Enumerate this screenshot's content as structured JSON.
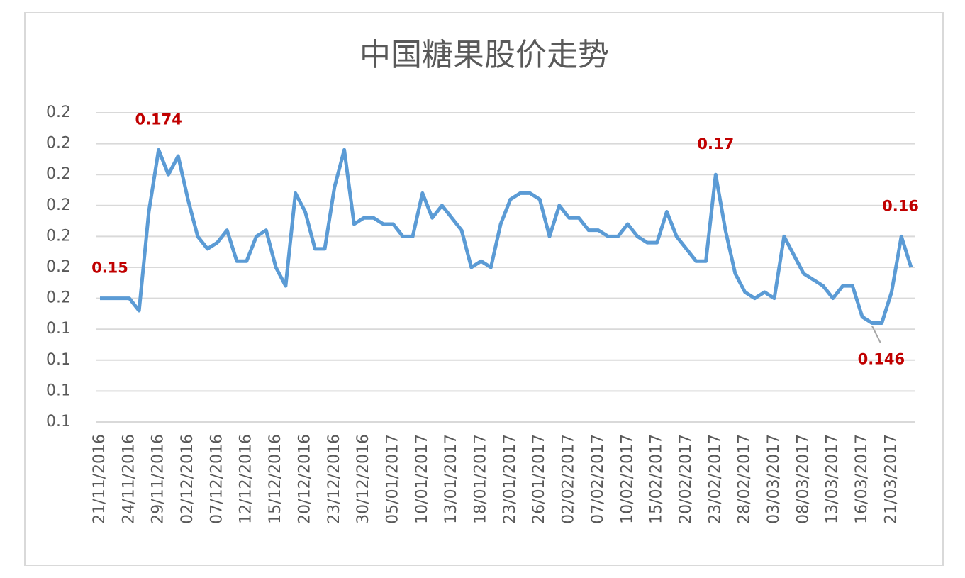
{
  "chart_data": {
    "type": "line",
    "title": "中国糖果股价走势",
    "categories": [
      "21/11/2016",
      null,
      null,
      "24/11/2016",
      null,
      null,
      "29/11/2016",
      null,
      null,
      "02/12/2016",
      null,
      null,
      "07/12/2016",
      null,
      null,
      "12/12/2016",
      null,
      null,
      "15/12/2016",
      null,
      null,
      "20/12/2016",
      null,
      null,
      "23/12/2016",
      null,
      null,
      "30/12/2016",
      null,
      null,
      "05/01/2017",
      null,
      null,
      "10/01/2017",
      null,
      null,
      "13/01/2017",
      null,
      null,
      "18/01/2017",
      null,
      null,
      "23/01/2017",
      null,
      null,
      "26/01/2017",
      null,
      null,
      "02/02/2017",
      null,
      null,
      "07/02/2017",
      null,
      null,
      "10/02/2017",
      null,
      null,
      "15/02/2017",
      null,
      null,
      "20/02/2017",
      null,
      null,
      "23/02/2017",
      null,
      null,
      "28/02/2017",
      null,
      null,
      "03/03/2017",
      null,
      null,
      "08/03/2017",
      null,
      null,
      "13/03/2017",
      null,
      null,
      "16/03/2017",
      null,
      null,
      "21/03/2017",
      null,
      null
    ],
    "values": [
      0.15,
      0.15,
      0.15,
      0.15,
      0.148,
      0.164,
      0.174,
      0.17,
      0.173,
      0.166,
      0.16,
      0.158,
      0.159,
      0.161,
      0.156,
      0.156,
      0.16,
      0.161,
      0.155,
      0.152,
      0.167,
      0.164,
      0.158,
      0.158,
      0.168,
      0.174,
      0.162,
      0.163,
      0.163,
      0.162,
      0.162,
      0.16,
      0.16,
      0.167,
      0.163,
      0.165,
      0.163,
      0.161,
      0.155,
      0.156,
      0.155,
      0.162,
      0.166,
      0.167,
      0.167,
      0.166,
      0.16,
      0.165,
      0.163,
      0.163,
      0.161,
      0.161,
      0.16,
      0.16,
      0.162,
      0.16,
      0.159,
      0.159,
      0.164,
      0.16,
      0.158,
      0.156,
      0.156,
      0.17,
      0.161,
      0.154,
      0.151,
      0.15,
      0.151,
      0.15,
      0.16,
      0.157,
      0.154,
      0.153,
      0.152,
      0.15,
      0.152,
      0.152,
      0.147,
      0.146,
      0.146,
      0.151,
      0.16,
      0.155
    ],
    "value_labels": [
      "0.15",
      null,
      null,
      null,
      null,
      null,
      "0.174",
      null,
      null,
      null,
      null,
      null,
      null,
      null,
      null,
      null,
      null,
      null,
      null,
      null,
      null,
      null,
      null,
      null,
      null,
      null,
      null,
      null,
      null,
      null,
      null,
      null,
      null,
      null,
      null,
      null,
      null,
      null,
      null,
      null,
      null,
      null,
      null,
      null,
      null,
      null,
      null,
      null,
      null,
      null,
      null,
      null,
      null,
      null,
      null,
      null,
      null,
      null,
      null,
      null,
      null,
      null,
      null,
      "0.17",
      null,
      null,
      null,
      null,
      null,
      null,
      null,
      null,
      null,
      null,
      null,
      null,
      null,
      null,
      null,
      "0.146",
      null,
      null,
      "0.16",
      null
    ],
    "color": "#5b9bd5",
    "ylim": [
      0.13,
      0.18
    ],
    "yticks": [
      {
        "value": 0.13,
        "label": "0.1"
      },
      {
        "value": 0.135,
        "label": "0.1"
      },
      {
        "value": 0.14,
        "label": "0.1"
      },
      {
        "value": 0.145,
        "label": "0.1"
      },
      {
        "value": 0.15,
        "label": "0.2"
      },
      {
        "value": 0.155,
        "label": "0.2"
      },
      {
        "value": 0.16,
        "label": "0.2"
      },
      {
        "value": 0.165,
        "label": "0.2"
      },
      {
        "value": 0.17,
        "label": "0.2"
      },
      {
        "value": 0.175,
        "label": "0.2"
      },
      {
        "value": 0.18,
        "label": "0.2"
      }
    ],
    "grid": true
  }
}
